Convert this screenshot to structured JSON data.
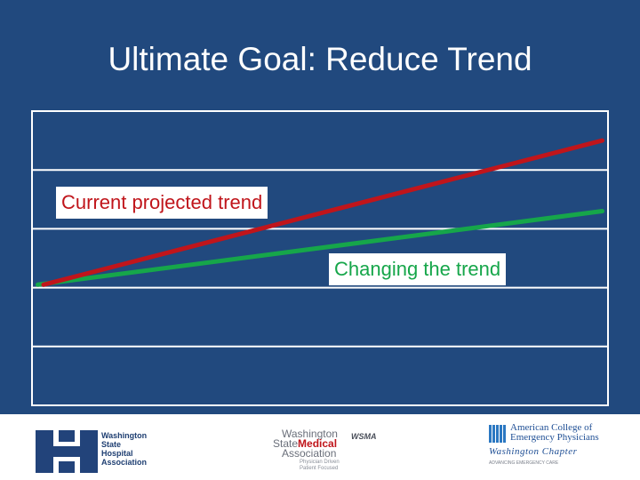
{
  "slide": {
    "title": "Ultimate Goal:  Reduce Trend",
    "background_color": "#21497e"
  },
  "chart_data": {
    "type": "line",
    "title": "",
    "xlabel": "",
    "ylabel": "",
    "xlim": [
      0,
      1
    ],
    "ylim": [
      0,
      5
    ],
    "grid": true,
    "gridlines_y": [
      1,
      2,
      3,
      4,
      5
    ],
    "series": [
      {
        "name": "Current projected trend",
        "color": "#c0151b",
        "points": [
          [
            0.02,
            2.05
          ],
          [
            0.99,
            4.5
          ]
        ]
      },
      {
        "name": "Changing the trend",
        "color": "#16a64a",
        "points": [
          [
            0.01,
            2.05
          ],
          [
            0.99,
            3.3
          ]
        ]
      }
    ]
  },
  "labels": {
    "current": "Current projected trend",
    "changing": "Changing the trend"
  },
  "footer": {
    "wsha": {
      "lines": [
        "Washington",
        "State",
        "Hospital",
        "Association"
      ]
    },
    "wsma": {
      "line1": "Washington",
      "line2_a": "State",
      "line2_b": "Medical",
      "line3": "Association",
      "tag1": "Physician Driven",
      "tag2": "Patient Focused",
      "mark": "WSMA"
    },
    "acep": {
      "line1": "American College of",
      "line2": "Emergency Physicians",
      "line3": "Washington Chapter",
      "line4": "ADVANCING EMERGENCY CARE"
    }
  }
}
